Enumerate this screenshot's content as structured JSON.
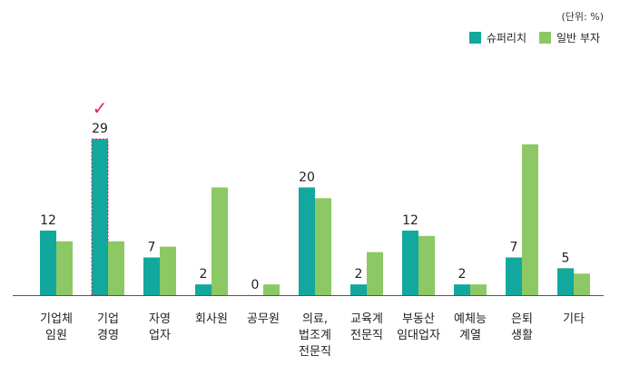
{
  "chart_data": {
    "type": "bar",
    "unit_note": "(단위: %)",
    "categories": [
      [
        "기업체",
        "임원"
      ],
      [
        "기업",
        "경영"
      ],
      [
        "자영",
        "업자"
      ],
      [
        "회사원"
      ],
      [
        "공무원"
      ],
      [
        "의료,",
        "법조계",
        "전문직"
      ],
      [
        "교육계",
        "전문직"
      ],
      [
        "부동산",
        "임대업자"
      ],
      [
        "예체능",
        "계열"
      ],
      [
        "은퇴",
        "생활"
      ],
      [
        "기타"
      ]
    ],
    "series": [
      {
        "name": "슈퍼리치",
        "color": "#13a89e",
        "values": [
          12,
          29,
          7,
          2,
          0,
          20,
          2,
          12,
          2,
          7,
          5
        ]
      },
      {
        "name": "일반 부자",
        "color": "#8cc864",
        "values": [
          10,
          10,
          9,
          20,
          2,
          18,
          8,
          11,
          2,
          28,
          4
        ]
      }
    ],
    "data_labels": [
      "12",
      "29",
      "7",
      "2",
      "0",
      "20",
      "2",
      "12",
      "2",
      "7",
      "5"
    ],
    "highlight": {
      "index": 1,
      "mark": "✓",
      "color": "#e0245e"
    },
    "ylim": [
      0,
      34
    ]
  }
}
